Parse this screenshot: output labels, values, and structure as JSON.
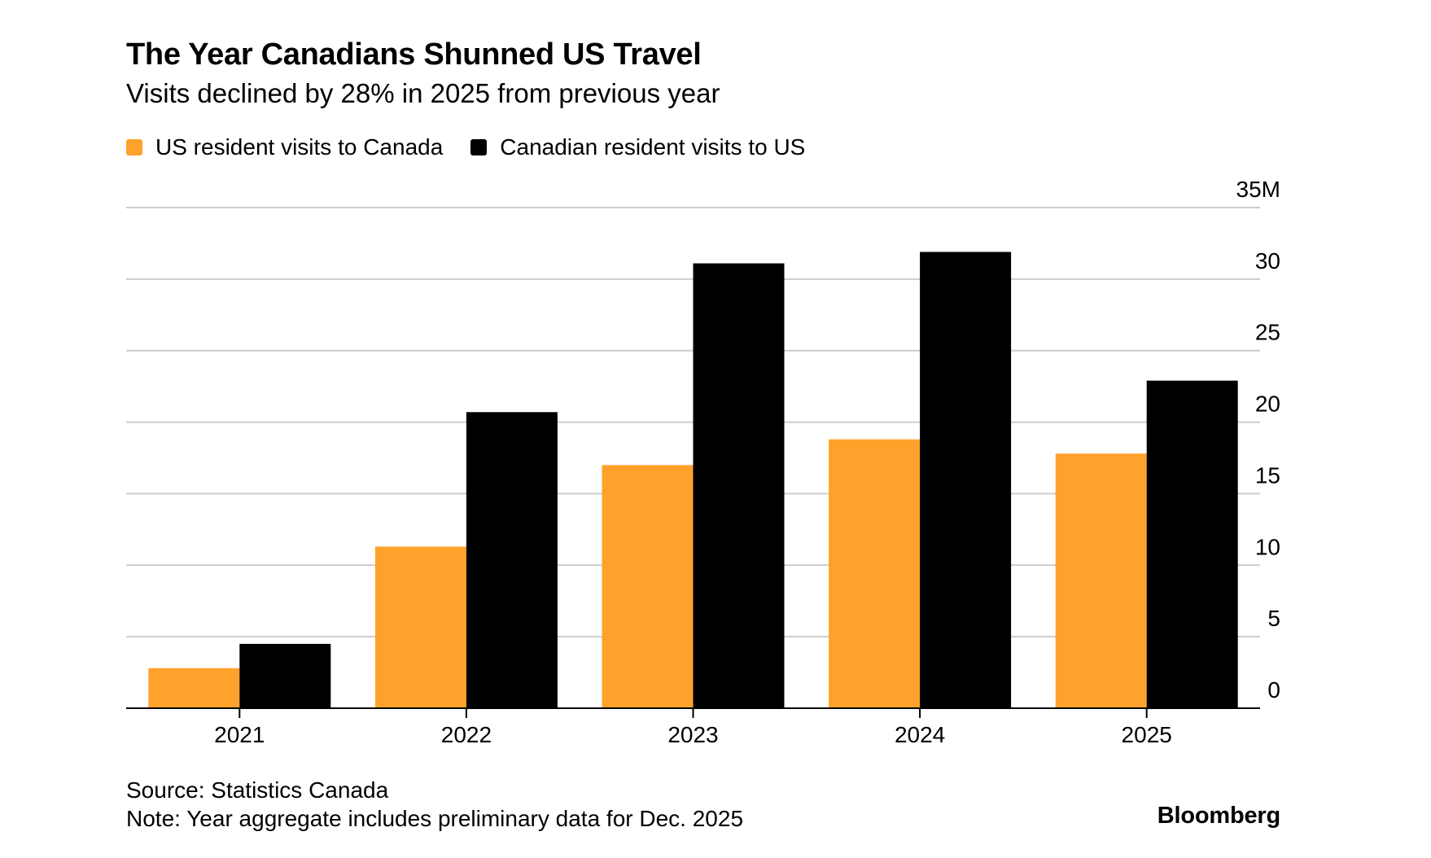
{
  "title": "The Year Canadians Shunned US Travel",
  "subtitle": "Visits declined by 28% in 2025 from previous year",
  "legend": [
    {
      "label": "US resident visits to Canada",
      "color": "#FFA22C"
    },
    {
      "label": "Canadian resident visits to US",
      "color": "#000000"
    }
  ],
  "source": "Source: Statistics Canada",
  "note": "Note: Year aggregate includes preliminary data for Dec. 2025",
  "brand": "Bloomberg",
  "chart_data": {
    "type": "bar",
    "title": "The Year Canadians Shunned US Travel",
    "subtitle": "Visits declined by 28% in 2025 from previous year",
    "categories": [
      "2021",
      "2022",
      "2023",
      "2024",
      "2025"
    ],
    "series": [
      {
        "name": "US resident visits to Canada",
        "color": "#FFA22C",
        "values": [
          2.8,
          11.3,
          17.0,
          18.8,
          17.8
        ]
      },
      {
        "name": "Canadian resident visits to US",
        "color": "#000000",
        "values": [
          4.5,
          20.7,
          31.1,
          31.9,
          22.9
        ]
      }
    ],
    "ylim": [
      0,
      35
    ],
    "yticks": [
      0,
      5,
      10,
      15,
      20,
      25,
      30,
      35
    ],
    "ytick_labels": [
      "0",
      "5",
      "10",
      "15",
      "20",
      "25",
      "30",
      "35M"
    ],
    "y_axis_side": "right",
    "grid": true,
    "legend_position": "top-left"
  }
}
